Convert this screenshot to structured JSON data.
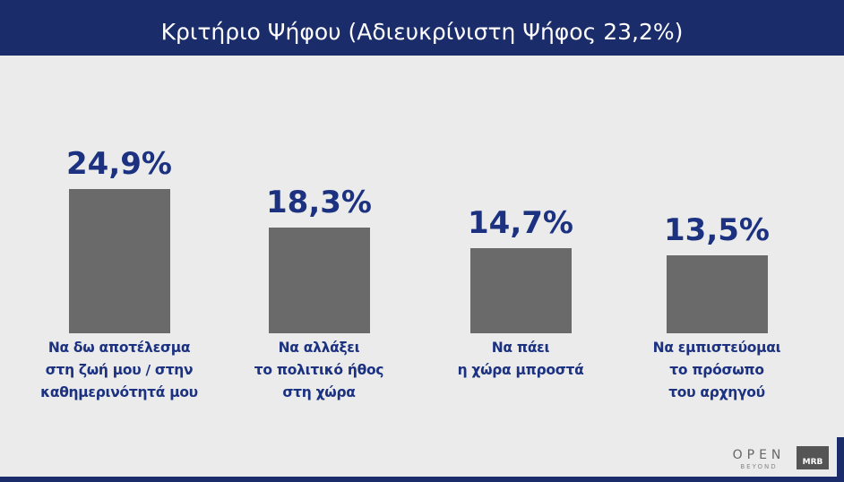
{
  "chart_data": {
    "type": "bar",
    "title": "Κριτήριο Ψήφου (Αδιευκρίνιστη Ψήφος 23,2%)",
    "categories": [
      "Να δω αποτέλεσμα\nστη ζωή μου / στην\nκαθημερινότητά μου",
      "Να αλλάξει\nτο πολιτικό ήθος\nστη χώρα",
      "Να πάει\nη χώρα μπροστά",
      "Να εμπιστεύομαι\nτο πρόσωπο\nτου αρχηγού"
    ],
    "values": [
      24.9,
      18.3,
      14.7,
      13.5
    ],
    "value_labels": [
      "24,9%",
      "18,3%",
      "14,7%",
      "13,5%"
    ],
    "color": "#6a6a6a"
  },
  "branding": {
    "channel": "OPEN",
    "tagline": "BEYOND",
    "source": "MRB"
  }
}
